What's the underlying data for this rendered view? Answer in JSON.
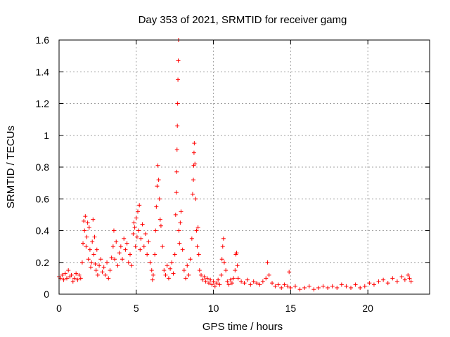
{
  "chart_data": {
    "type": "scatter",
    "title": "Day 353 of 2021, SRMTID for receiver gamg",
    "xlabel": "GPS time / hours",
    "ylabel": "SRMTID / TECUs",
    "xlim": [
      0,
      24
    ],
    "ylim": [
      0,
      1.6
    ],
    "xticks": [
      0,
      5,
      10,
      15,
      20
    ],
    "xtick_labels": [
      "0",
      "5",
      "10",
      "15",
      "20"
    ],
    "yticks": [
      0,
      0.2,
      0.4,
      0.6,
      0.8,
      1.0,
      1.2,
      1.4,
      1.6
    ],
    "ytick_labels": [
      "0",
      "0.2",
      "0.4",
      "0.6",
      "0.8",
      "1",
      "1.2",
      "1.4",
      "1.6"
    ],
    "grid": true,
    "marker": "+",
    "series": [
      {
        "name": "SRMTID",
        "color": "#ff0000",
        "points": [
          [
            0.0,
            0.11
          ],
          [
            0.1,
            0.1
          ],
          [
            0.2,
            0.12
          ],
          [
            0.3,
            0.09
          ],
          [
            0.4,
            0.13
          ],
          [
            0.5,
            0.1
          ],
          [
            0.6,
            0.15
          ],
          [
            0.7,
            0.11
          ],
          [
            0.8,
            0.12
          ],
          [
            0.9,
            0.08
          ],
          [
            1.0,
            0.1
          ],
          [
            1.1,
            0.13
          ],
          [
            1.2,
            0.09
          ],
          [
            1.3,
            0.12
          ],
          [
            1.4,
            0.1
          ],
          [
            1.5,
            0.2
          ],
          [
            1.55,
            0.32
          ],
          [
            1.6,
            0.46
          ],
          [
            1.65,
            0.4
          ],
          [
            1.7,
            0.49
          ],
          [
            1.75,
            0.3
          ],
          [
            1.8,
            0.36
          ],
          [
            1.85,
            0.45
          ],
          [
            1.9,
            0.22
          ],
          [
            1.95,
            0.42
          ],
          [
            2.0,
            0.28
          ],
          [
            2.05,
            0.17
          ],
          [
            2.1,
            0.2
          ],
          [
            2.15,
            0.33
          ],
          [
            2.2,
            0.47
          ],
          [
            2.25,
            0.25
          ],
          [
            2.3,
            0.36
          ],
          [
            2.35,
            0.19
          ],
          [
            2.4,
            0.15
          ],
          [
            2.45,
            0.28
          ],
          [
            2.5,
            0.12
          ],
          [
            2.6,
            0.18
          ],
          [
            2.7,
            0.22
          ],
          [
            2.8,
            0.14
          ],
          [
            2.9,
            0.17
          ],
          [
            3.0,
            0.12
          ],
          [
            3.1,
            0.2
          ],
          [
            3.2,
            0.1
          ],
          [
            3.3,
            0.15
          ],
          [
            3.4,
            0.23
          ],
          [
            3.5,
            0.3
          ],
          [
            3.55,
            0.4
          ],
          [
            3.6,
            0.22
          ],
          [
            3.7,
            0.33
          ],
          [
            3.8,
            0.18
          ],
          [
            3.9,
            0.26
          ],
          [
            4.0,
            0.3
          ],
          [
            4.1,
            0.22
          ],
          [
            4.2,
            0.35
          ],
          [
            4.3,
            0.28
          ],
          [
            4.4,
            0.32
          ],
          [
            4.5,
            0.2
          ],
          [
            4.6,
            0.25
          ],
          [
            4.7,
            0.18
          ],
          [
            4.8,
            0.38
          ],
          [
            4.85,
            0.45
          ],
          [
            4.9,
            0.42
          ],
          [
            4.95,
            0.3
          ],
          [
            5.0,
            0.48
          ],
          [
            5.05,
            0.36
          ],
          [
            5.1,
            0.52
          ],
          [
            5.15,
            0.4
          ],
          [
            5.2,
            0.56
          ],
          [
            5.25,
            0.28
          ],
          [
            5.3,
            0.35
          ],
          [
            5.4,
            0.44
          ],
          [
            5.5,
            0.3
          ],
          [
            5.6,
            0.38
          ],
          [
            5.7,
            0.25
          ],
          [
            5.8,
            0.33
          ],
          [
            5.9,
            0.2
          ],
          [
            6.0,
            0.15
          ],
          [
            6.05,
            0.09
          ],
          [
            6.1,
            0.12
          ],
          [
            6.2,
            0.25
          ],
          [
            6.25,
            0.4
          ],
          [
            6.3,
            0.55
          ],
          [
            6.35,
            0.68
          ],
          [
            6.4,
            0.81
          ],
          [
            6.45,
            0.72
          ],
          [
            6.5,
            0.6
          ],
          [
            6.55,
            0.47
          ],
          [
            6.6,
            0.43
          ],
          [
            6.7,
            0.3
          ],
          [
            6.8,
            0.15
          ],
          [
            6.9,
            0.12
          ],
          [
            7.0,
            0.18
          ],
          [
            7.1,
            0.1
          ],
          [
            7.2,
            0.16
          ],
          [
            7.3,
            0.2
          ],
          [
            7.4,
            0.13
          ],
          [
            7.5,
            0.25
          ],
          [
            7.55,
            0.5
          ],
          [
            7.6,
            0.64
          ],
          [
            7.62,
            0.77
          ],
          [
            7.64,
            0.91
          ],
          [
            7.66,
            1.06
          ],
          [
            7.68,
            1.2
          ],
          [
            7.7,
            1.35
          ],
          [
            7.72,
            1.47
          ],
          [
            7.74,
            1.6
          ],
          [
            7.76,
            0.4
          ],
          [
            7.8,
            0.32
          ],
          [
            7.85,
            0.45
          ],
          [
            7.9,
            0.52
          ],
          [
            8.0,
            0.28
          ],
          [
            8.1,
            0.15
          ],
          [
            8.2,
            0.1
          ],
          [
            8.3,
            0.18
          ],
          [
            8.4,
            0.12
          ],
          [
            8.5,
            0.22
          ],
          [
            8.6,
            0.35
          ],
          [
            8.65,
            0.63
          ],
          [
            8.7,
            0.72
          ],
          [
            8.72,
            0.81
          ],
          [
            8.74,
            0.89
          ],
          [
            8.76,
            0.95
          ],
          [
            8.8,
            0.82
          ],
          [
            8.85,
            0.6
          ],
          [
            8.9,
            0.4
          ],
          [
            8.95,
            0.3
          ],
          [
            9.0,
            0.42
          ],
          [
            9.05,
            0.25
          ],
          [
            9.1,
            0.15
          ],
          [
            9.2,
            0.12
          ],
          [
            9.3,
            0.09
          ],
          [
            9.4,
            0.11
          ],
          [
            9.5,
            0.08
          ],
          [
            9.6,
            0.1
          ],
          [
            9.7,
            0.07
          ],
          [
            9.8,
            0.09
          ],
          [
            9.9,
            0.06
          ],
          [
            10.0,
            0.08
          ],
          [
            10.1,
            0.05
          ],
          [
            10.2,
            0.07
          ],
          [
            10.3,
            0.09
          ],
          [
            10.4,
            0.06
          ],
          [
            10.5,
            0.12
          ],
          [
            10.55,
            0.22
          ],
          [
            10.6,
            0.3
          ],
          [
            10.65,
            0.35
          ],
          [
            10.7,
            0.2
          ],
          [
            10.8,
            0.15
          ],
          [
            10.9,
            0.08
          ],
          [
            11.0,
            0.06
          ],
          [
            11.1,
            0.09
          ],
          [
            11.2,
            0.07
          ],
          [
            11.3,
            0.1
          ],
          [
            11.4,
            0.15
          ],
          [
            11.45,
            0.25
          ],
          [
            11.5,
            0.26
          ],
          [
            11.55,
            0.18
          ],
          [
            11.6,
            0.1
          ],
          [
            11.8,
            0.08
          ],
          [
            12.0,
            0.07
          ],
          [
            12.2,
            0.09
          ],
          [
            12.4,
            0.06
          ],
          [
            12.6,
            0.08
          ],
          [
            12.8,
            0.07
          ],
          [
            13.0,
            0.06
          ],
          [
            13.2,
            0.08
          ],
          [
            13.4,
            0.1
          ],
          [
            13.5,
            0.2
          ],
          [
            13.6,
            0.12
          ],
          [
            13.8,
            0.07
          ],
          [
            14.0,
            0.05
          ],
          [
            14.2,
            0.06
          ],
          [
            14.4,
            0.04
          ],
          [
            14.6,
            0.06
          ],
          [
            14.8,
            0.05
          ],
          [
            14.9,
            0.14
          ],
          [
            15.0,
            0.04
          ],
          [
            15.3,
            0.05
          ],
          [
            15.6,
            0.03
          ],
          [
            15.9,
            0.04
          ],
          [
            16.2,
            0.05
          ],
          [
            16.5,
            0.03
          ],
          [
            16.8,
            0.04
          ],
          [
            17.1,
            0.05
          ],
          [
            17.4,
            0.04
          ],
          [
            17.7,
            0.05
          ],
          [
            18.0,
            0.04
          ],
          [
            18.3,
            0.06
          ],
          [
            18.6,
            0.05
          ],
          [
            18.9,
            0.04
          ],
          [
            19.2,
            0.06
          ],
          [
            19.5,
            0.04
          ],
          [
            19.8,
            0.05
          ],
          [
            20.1,
            0.07
          ],
          [
            20.4,
            0.06
          ],
          [
            20.7,
            0.08
          ],
          [
            21.0,
            0.09
          ],
          [
            21.3,
            0.07
          ],
          [
            21.6,
            0.1
          ],
          [
            21.9,
            0.08
          ],
          [
            22.2,
            0.11
          ],
          [
            22.4,
            0.09
          ],
          [
            22.6,
            0.12
          ],
          [
            22.7,
            0.1
          ],
          [
            22.8,
            0.08
          ]
        ]
      }
    ]
  }
}
